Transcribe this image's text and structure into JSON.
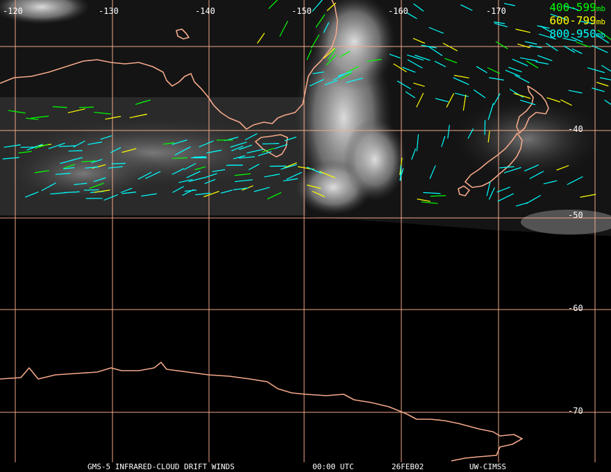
{
  "lon_labels": [
    "-120",
    "-130",
    "-140",
    "-150",
    "-160",
    "-170"
  ],
  "lat_labels": [
    "-40",
    "-50",
    "-60",
    "-70"
  ],
  "legend": [
    {
      "range": "400-599",
      "unit": "mb",
      "color": "#00ff00"
    },
    {
      "range": "600-799",
      "unit": "mb",
      "color": "#ffff00"
    },
    {
      "range": "800-950",
      "unit": "mb",
      "color": "#00ffff"
    }
  ],
  "footer": {
    "product": "GMS-5 INFRARED-CLOUD DRIFT WINDS",
    "time": "00:00 UTC",
    "date": "26FEB02",
    "source": "UW-CIMSS"
  },
  "colors": {
    "grid": "#f4a98a",
    "coast": "#f4a98a",
    "label": "#ffffff",
    "wind_high": "#00ff00",
    "wind_mid": "#ffff00",
    "wind_low": "#00ffff"
  }
}
